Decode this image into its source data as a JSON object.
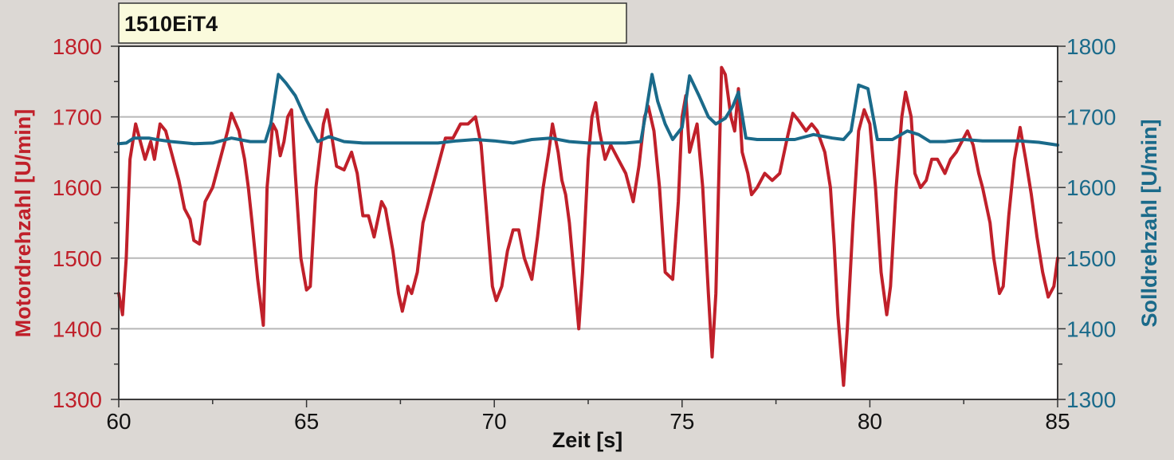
{
  "chart_data": {
    "type": "line",
    "title": "1510EiT4",
    "xlabel": "Zeit [s]",
    "ylabel_left": "Motordrehzahl [U/min]",
    "ylabel_right": "Solldrehzahl [U/min]",
    "xlim": [
      60,
      85
    ],
    "ylim": [
      1300,
      1800
    ],
    "x_ticks": [
      60,
      65,
      70,
      75,
      80,
      85
    ],
    "y_ticks": [
      1300,
      1400,
      1500,
      1600,
      1700,
      1800
    ],
    "grid": true,
    "colors": {
      "motor": "#c0202a",
      "soll": "#1a6a8a",
      "title_box": "#fafadc"
    },
    "series": [
      {
        "axis": "left",
        "color": "#c0202a",
        "points": [
          [
            60.0,
            1450
          ],
          [
            60.1,
            1420
          ],
          [
            60.2,
            1500
          ],
          [
            60.3,
            1640
          ],
          [
            60.45,
            1690
          ],
          [
            60.6,
            1660
          ],
          [
            60.7,
            1640
          ],
          [
            60.85,
            1665
          ],
          [
            60.95,
            1640
          ],
          [
            61.1,
            1690
          ],
          [
            61.25,
            1680
          ],
          [
            61.4,
            1650
          ],
          [
            61.6,
            1610
          ],
          [
            61.75,
            1570
          ],
          [
            61.9,
            1555
          ],
          [
            62.0,
            1525
          ],
          [
            62.15,
            1520
          ],
          [
            62.3,
            1580
          ],
          [
            62.5,
            1600
          ],
          [
            62.7,
            1640
          ],
          [
            62.9,
            1680
          ],
          [
            63.0,
            1705
          ],
          [
            63.2,
            1680
          ],
          [
            63.35,
            1640
          ],
          [
            63.45,
            1600
          ],
          [
            63.55,
            1550
          ],
          [
            63.7,
            1470
          ],
          [
            63.85,
            1405
          ],
          [
            63.95,
            1600
          ],
          [
            64.1,
            1690
          ],
          [
            64.2,
            1680
          ],
          [
            64.3,
            1645
          ],
          [
            64.4,
            1665
          ],
          [
            64.5,
            1700
          ],
          [
            64.6,
            1710
          ],
          [
            64.7,
            1620
          ],
          [
            64.85,
            1500
          ],
          [
            65.0,
            1455
          ],
          [
            65.1,
            1460
          ],
          [
            65.25,
            1600
          ],
          [
            65.45,
            1690
          ],
          [
            65.55,
            1710
          ],
          [
            65.65,
            1680
          ],
          [
            65.8,
            1630
          ],
          [
            66.0,
            1625
          ],
          [
            66.2,
            1650
          ],
          [
            66.35,
            1620
          ],
          [
            66.5,
            1560
          ],
          [
            66.65,
            1560
          ],
          [
            66.8,
            1530
          ],
          [
            67.0,
            1580
          ],
          [
            67.1,
            1570
          ],
          [
            67.3,
            1510
          ],
          [
            67.45,
            1450
          ],
          [
            67.55,
            1425
          ],
          [
            67.7,
            1460
          ],
          [
            67.8,
            1450
          ],
          [
            67.95,
            1480
          ],
          [
            68.1,
            1550
          ],
          [
            68.3,
            1590
          ],
          [
            68.5,
            1630
          ],
          [
            68.7,
            1670
          ],
          [
            68.9,
            1670
          ],
          [
            69.1,
            1690
          ],
          [
            69.3,
            1690
          ],
          [
            69.5,
            1700
          ],
          [
            69.65,
            1660
          ],
          [
            69.8,
            1560
          ],
          [
            69.95,
            1460
          ],
          [
            70.05,
            1440
          ],
          [
            70.2,
            1460
          ],
          [
            70.35,
            1510
          ],
          [
            70.5,
            1540
          ],
          [
            70.65,
            1540
          ],
          [
            70.8,
            1500
          ],
          [
            71.0,
            1470
          ],
          [
            71.15,
            1530
          ],
          [
            71.3,
            1600
          ],
          [
            71.45,
            1650
          ],
          [
            71.55,
            1690
          ],
          [
            71.7,
            1650
          ],
          [
            71.8,
            1610
          ],
          [
            71.9,
            1590
          ],
          [
            72.0,
            1550
          ],
          [
            72.15,
            1460
          ],
          [
            72.25,
            1400
          ],
          [
            72.35,
            1480
          ],
          [
            72.5,
            1640
          ],
          [
            72.6,
            1700
          ],
          [
            72.7,
            1720
          ],
          [
            72.8,
            1680
          ],
          [
            72.95,
            1640
          ],
          [
            73.1,
            1660
          ],
          [
            73.3,
            1640
          ],
          [
            73.5,
            1620
          ],
          [
            73.6,
            1600
          ],
          [
            73.7,
            1580
          ],
          [
            73.85,
            1630
          ],
          [
            74.0,
            1700
          ],
          [
            74.1,
            1715
          ],
          [
            74.25,
            1680
          ],
          [
            74.4,
            1600
          ],
          [
            74.55,
            1480
          ],
          [
            74.75,
            1470
          ],
          [
            74.9,
            1580
          ],
          [
            75.0,
            1700
          ],
          [
            75.1,
            1730
          ],
          [
            75.2,
            1650
          ],
          [
            75.3,
            1670
          ],
          [
            75.4,
            1690
          ],
          [
            75.55,
            1600
          ],
          [
            75.7,
            1450
          ],
          [
            75.8,
            1360
          ],
          [
            75.9,
            1450
          ],
          [
            76.0,
            1660
          ],
          [
            76.05,
            1770
          ],
          [
            76.15,
            1760
          ],
          [
            76.3,
            1700
          ],
          [
            76.4,
            1680
          ],
          [
            76.5,
            1740
          ],
          [
            76.6,
            1650
          ],
          [
            76.75,
            1620
          ],
          [
            76.85,
            1590
          ],
          [
            77.0,
            1600
          ],
          [
            77.2,
            1620
          ],
          [
            77.4,
            1610
          ],
          [
            77.6,
            1620
          ],
          [
            77.8,
            1670
          ],
          [
            77.95,
            1705
          ],
          [
            78.1,
            1695
          ],
          [
            78.3,
            1680
          ],
          [
            78.45,
            1690
          ],
          [
            78.6,
            1680
          ],
          [
            78.8,
            1650
          ],
          [
            78.95,
            1600
          ],
          [
            79.05,
            1520
          ],
          [
            79.15,
            1420
          ],
          [
            79.3,
            1320
          ],
          [
            79.4,
            1400
          ],
          [
            79.55,
            1550
          ],
          [
            79.7,
            1680
          ],
          [
            79.85,
            1710
          ],
          [
            80.0,
            1690
          ],
          [
            80.15,
            1600
          ],
          [
            80.3,
            1480
          ],
          [
            80.45,
            1420
          ],
          [
            80.55,
            1460
          ],
          [
            80.7,
            1600
          ],
          [
            80.85,
            1700
          ],
          [
            80.95,
            1735
          ],
          [
            81.1,
            1700
          ],
          [
            81.2,
            1620
          ],
          [
            81.35,
            1600
          ],
          [
            81.5,
            1610
          ],
          [
            81.65,
            1640
          ],
          [
            81.8,
            1640
          ],
          [
            82.0,
            1620
          ],
          [
            82.15,
            1640
          ],
          [
            82.3,
            1650
          ],
          [
            82.45,
            1665
          ],
          [
            82.6,
            1680
          ],
          [
            82.75,
            1660
          ],
          [
            82.9,
            1620
          ],
          [
            83.0,
            1600
          ],
          [
            83.2,
            1550
          ],
          [
            83.3,
            1500
          ],
          [
            83.45,
            1450
          ],
          [
            83.55,
            1460
          ],
          [
            83.7,
            1560
          ],
          [
            83.85,
            1640
          ],
          [
            84.0,
            1685
          ],
          [
            84.15,
            1640
          ],
          [
            84.3,
            1590
          ],
          [
            84.45,
            1530
          ],
          [
            84.6,
            1480
          ],
          [
            84.75,
            1445
          ],
          [
            84.9,
            1460
          ],
          [
            85.0,
            1500
          ]
        ]
      },
      {
        "axis": "right",
        "color": "#1a6a8a",
        "points": [
          [
            60.0,
            1662
          ],
          [
            60.2,
            1663
          ],
          [
            60.4,
            1670
          ],
          [
            60.8,
            1670
          ],
          [
            61.0,
            1668
          ],
          [
            61.4,
            1665
          ],
          [
            62.0,
            1662
          ],
          [
            62.5,
            1663
          ],
          [
            63.0,
            1670
          ],
          [
            63.5,
            1665
          ],
          [
            63.9,
            1665
          ],
          [
            64.05,
            1690
          ],
          [
            64.25,
            1760
          ],
          [
            64.45,
            1748
          ],
          [
            64.7,
            1730
          ],
          [
            65.0,
            1695
          ],
          [
            65.3,
            1665
          ],
          [
            65.6,
            1672
          ],
          [
            66.0,
            1665
          ],
          [
            66.5,
            1663
          ],
          [
            67.0,
            1663
          ],
          [
            68.0,
            1663
          ],
          [
            68.5,
            1663
          ],
          [
            69.0,
            1666
          ],
          [
            69.5,
            1668
          ],
          [
            70.0,
            1666
          ],
          [
            70.5,
            1663
          ],
          [
            71.0,
            1668
          ],
          [
            71.5,
            1670
          ],
          [
            72.0,
            1665
          ],
          [
            72.5,
            1663
          ],
          [
            73.0,
            1663
          ],
          [
            73.5,
            1663
          ],
          [
            73.9,
            1665
          ],
          [
            74.05,
            1710
          ],
          [
            74.2,
            1760
          ],
          [
            74.35,
            1722
          ],
          [
            74.55,
            1690
          ],
          [
            74.75,
            1668
          ],
          [
            75.0,
            1685
          ],
          [
            75.2,
            1758
          ],
          [
            75.45,
            1730
          ],
          [
            75.7,
            1700
          ],
          [
            75.9,
            1690
          ],
          [
            76.15,
            1698
          ],
          [
            76.35,
            1715
          ],
          [
            76.5,
            1735
          ],
          [
            76.7,
            1670
          ],
          [
            77.0,
            1668
          ],
          [
            77.5,
            1668
          ],
          [
            78.0,
            1668
          ],
          [
            78.5,
            1675
          ],
          [
            79.0,
            1670
          ],
          [
            79.3,
            1668
          ],
          [
            79.5,
            1680
          ],
          [
            79.7,
            1745
          ],
          [
            79.95,
            1740
          ],
          [
            80.2,
            1668
          ],
          [
            80.6,
            1668
          ],
          [
            81.0,
            1680
          ],
          [
            81.3,
            1675
          ],
          [
            81.6,
            1665
          ],
          [
            82.0,
            1665
          ],
          [
            82.5,
            1668
          ],
          [
            83.0,
            1666
          ],
          [
            83.5,
            1666
          ],
          [
            84.0,
            1666
          ],
          [
            84.5,
            1664
          ],
          [
            85.0,
            1660
          ]
        ]
      }
    ]
  }
}
